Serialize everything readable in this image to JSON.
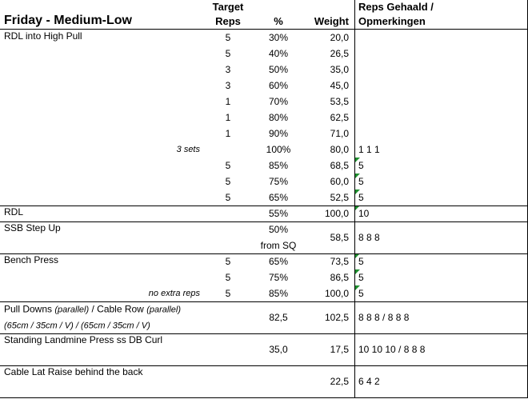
{
  "header": {
    "title": "Friday - Medium-Low",
    "target": "Target",
    "reps": "Reps",
    "percent": "%",
    "weight": "Weight",
    "notes_1": "Reps Gehaald /",
    "notes_2": "Opmerkingen"
  },
  "blocks": [
    {
      "rows": [
        {
          "exercise": "RDL into High Pull",
          "reps": "5",
          "percent": "30%",
          "weight": "20,0"
        },
        {
          "reps": "5",
          "percent": "40%",
          "weight": "26,5"
        },
        {
          "reps": "3",
          "percent": "50%",
          "weight": "35,0"
        },
        {
          "reps": "3",
          "percent": "60%",
          "weight": "45,0"
        },
        {
          "reps": "1",
          "percent": "70%",
          "weight": "53,5"
        },
        {
          "reps": "1",
          "percent": "80%",
          "weight": "62,5"
        },
        {
          "reps": "1",
          "percent": "90%",
          "weight": "71,0"
        },
        {
          "note": "3 sets",
          "percent": "100%",
          "weight": "80,0",
          "done": "1 1 1"
        },
        {
          "reps": "5",
          "percent": "85%",
          "weight": "68,5",
          "done": "5"
        },
        {
          "reps": "5",
          "percent": "75%",
          "weight": "60,0",
          "done": "5"
        },
        {
          "reps": "5",
          "percent": "65%",
          "weight": "52,5",
          "done": "5"
        }
      ]
    },
    {
      "rows": [
        {
          "exercise": "RDL",
          "percent": "55%",
          "weight": "100,0",
          "done": "10"
        }
      ]
    },
    {
      "rows": [
        {
          "exercise": "SSB Step Up",
          "percent": "50%"
        },
        {
          "percent": "from SQ"
        }
      ],
      "center": {
        "weight": "58,5",
        "done": "8 8 8"
      }
    },
    {
      "rows": [
        {
          "exercise": "Bench Press",
          "reps": "5",
          "percent": "65%",
          "weight": "73,5",
          "done": "5"
        },
        {
          "reps": "5",
          "percent": "75%",
          "weight": "86,5",
          "done": "5"
        },
        {
          "note": "no extra reps",
          "reps": "5",
          "percent": "85%",
          "weight": "100,0",
          "done": "5"
        }
      ]
    },
    {
      "rows": [
        {
          "exercise_parts": [
            "Pull Downs ",
            "(parallel)",
            " / Cable Row ",
            "(parallel)"
          ],
          "italic": [
            false,
            true,
            false,
            true
          ]
        },
        {
          "exercise_parts": [
            "(65cm / 35cm / V) / (65cm / 35cm / V)"
          ],
          "italic": [
            true
          ]
        }
      ],
      "center": {
        "percent": "82,5",
        "weight": "102,5",
        "done": "8 8 8 / 8 8 8"
      }
    },
    {
      "rows": [
        {
          "exercise": "Standing Landmine Press ss DB Curl"
        },
        {}
      ],
      "center": {
        "percent": "35,0",
        "weight": "17,5",
        "done": "10 10 10 / 8 8 8"
      }
    },
    {
      "rows": [
        {
          "exercise": "Cable Lat Raise behind the back"
        },
        {}
      ],
      "center": {
        "weight": "22,5",
        "done": "6 4 2"
      }
    }
  ]
}
